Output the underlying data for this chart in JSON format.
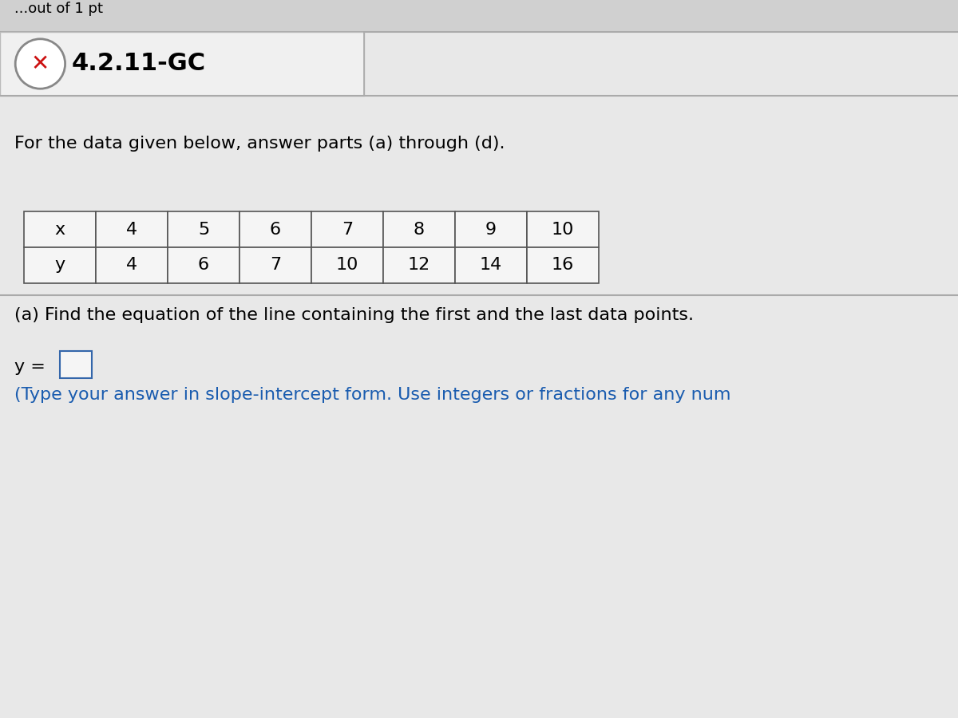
{
  "title": "4.2.11-GC",
  "header_text": "For the data given below, answer parts (a) through (d).",
  "x_label": "x",
  "y_label": "y",
  "x_values": [
    "4",
    "5",
    "6",
    "7",
    "8",
    "9",
    "10"
  ],
  "y_values": [
    "4",
    "6",
    "7",
    "10",
    "12",
    "14",
    "16"
  ],
  "part_a_text": "(a) Find the equation of the line containing the first and the last data points.",
  "answer_label": "y =",
  "instruction_text": "(Type your answer in slope-intercept form. Use integers or fractions for any num",
  "bg_color": "#e8e8e8",
  "top_strip_color": "#d0d0d0",
  "content_bg_color": "#ebebeb",
  "title_bg_color": "#e8e8e8",
  "table_bg_color": "#f5f5f5",
  "text_color": "#000000",
  "blue_text_color": "#1a5caf",
  "red_color": "#cc1111",
  "circle_color": "#888888",
  "answer_box_color": "#f5f5f5",
  "answer_box_border": "#3366aa",
  "divider_color": "#aaaaaa",
  "title_font_size": 22,
  "body_font_size": 16,
  "table_font_size": 16
}
